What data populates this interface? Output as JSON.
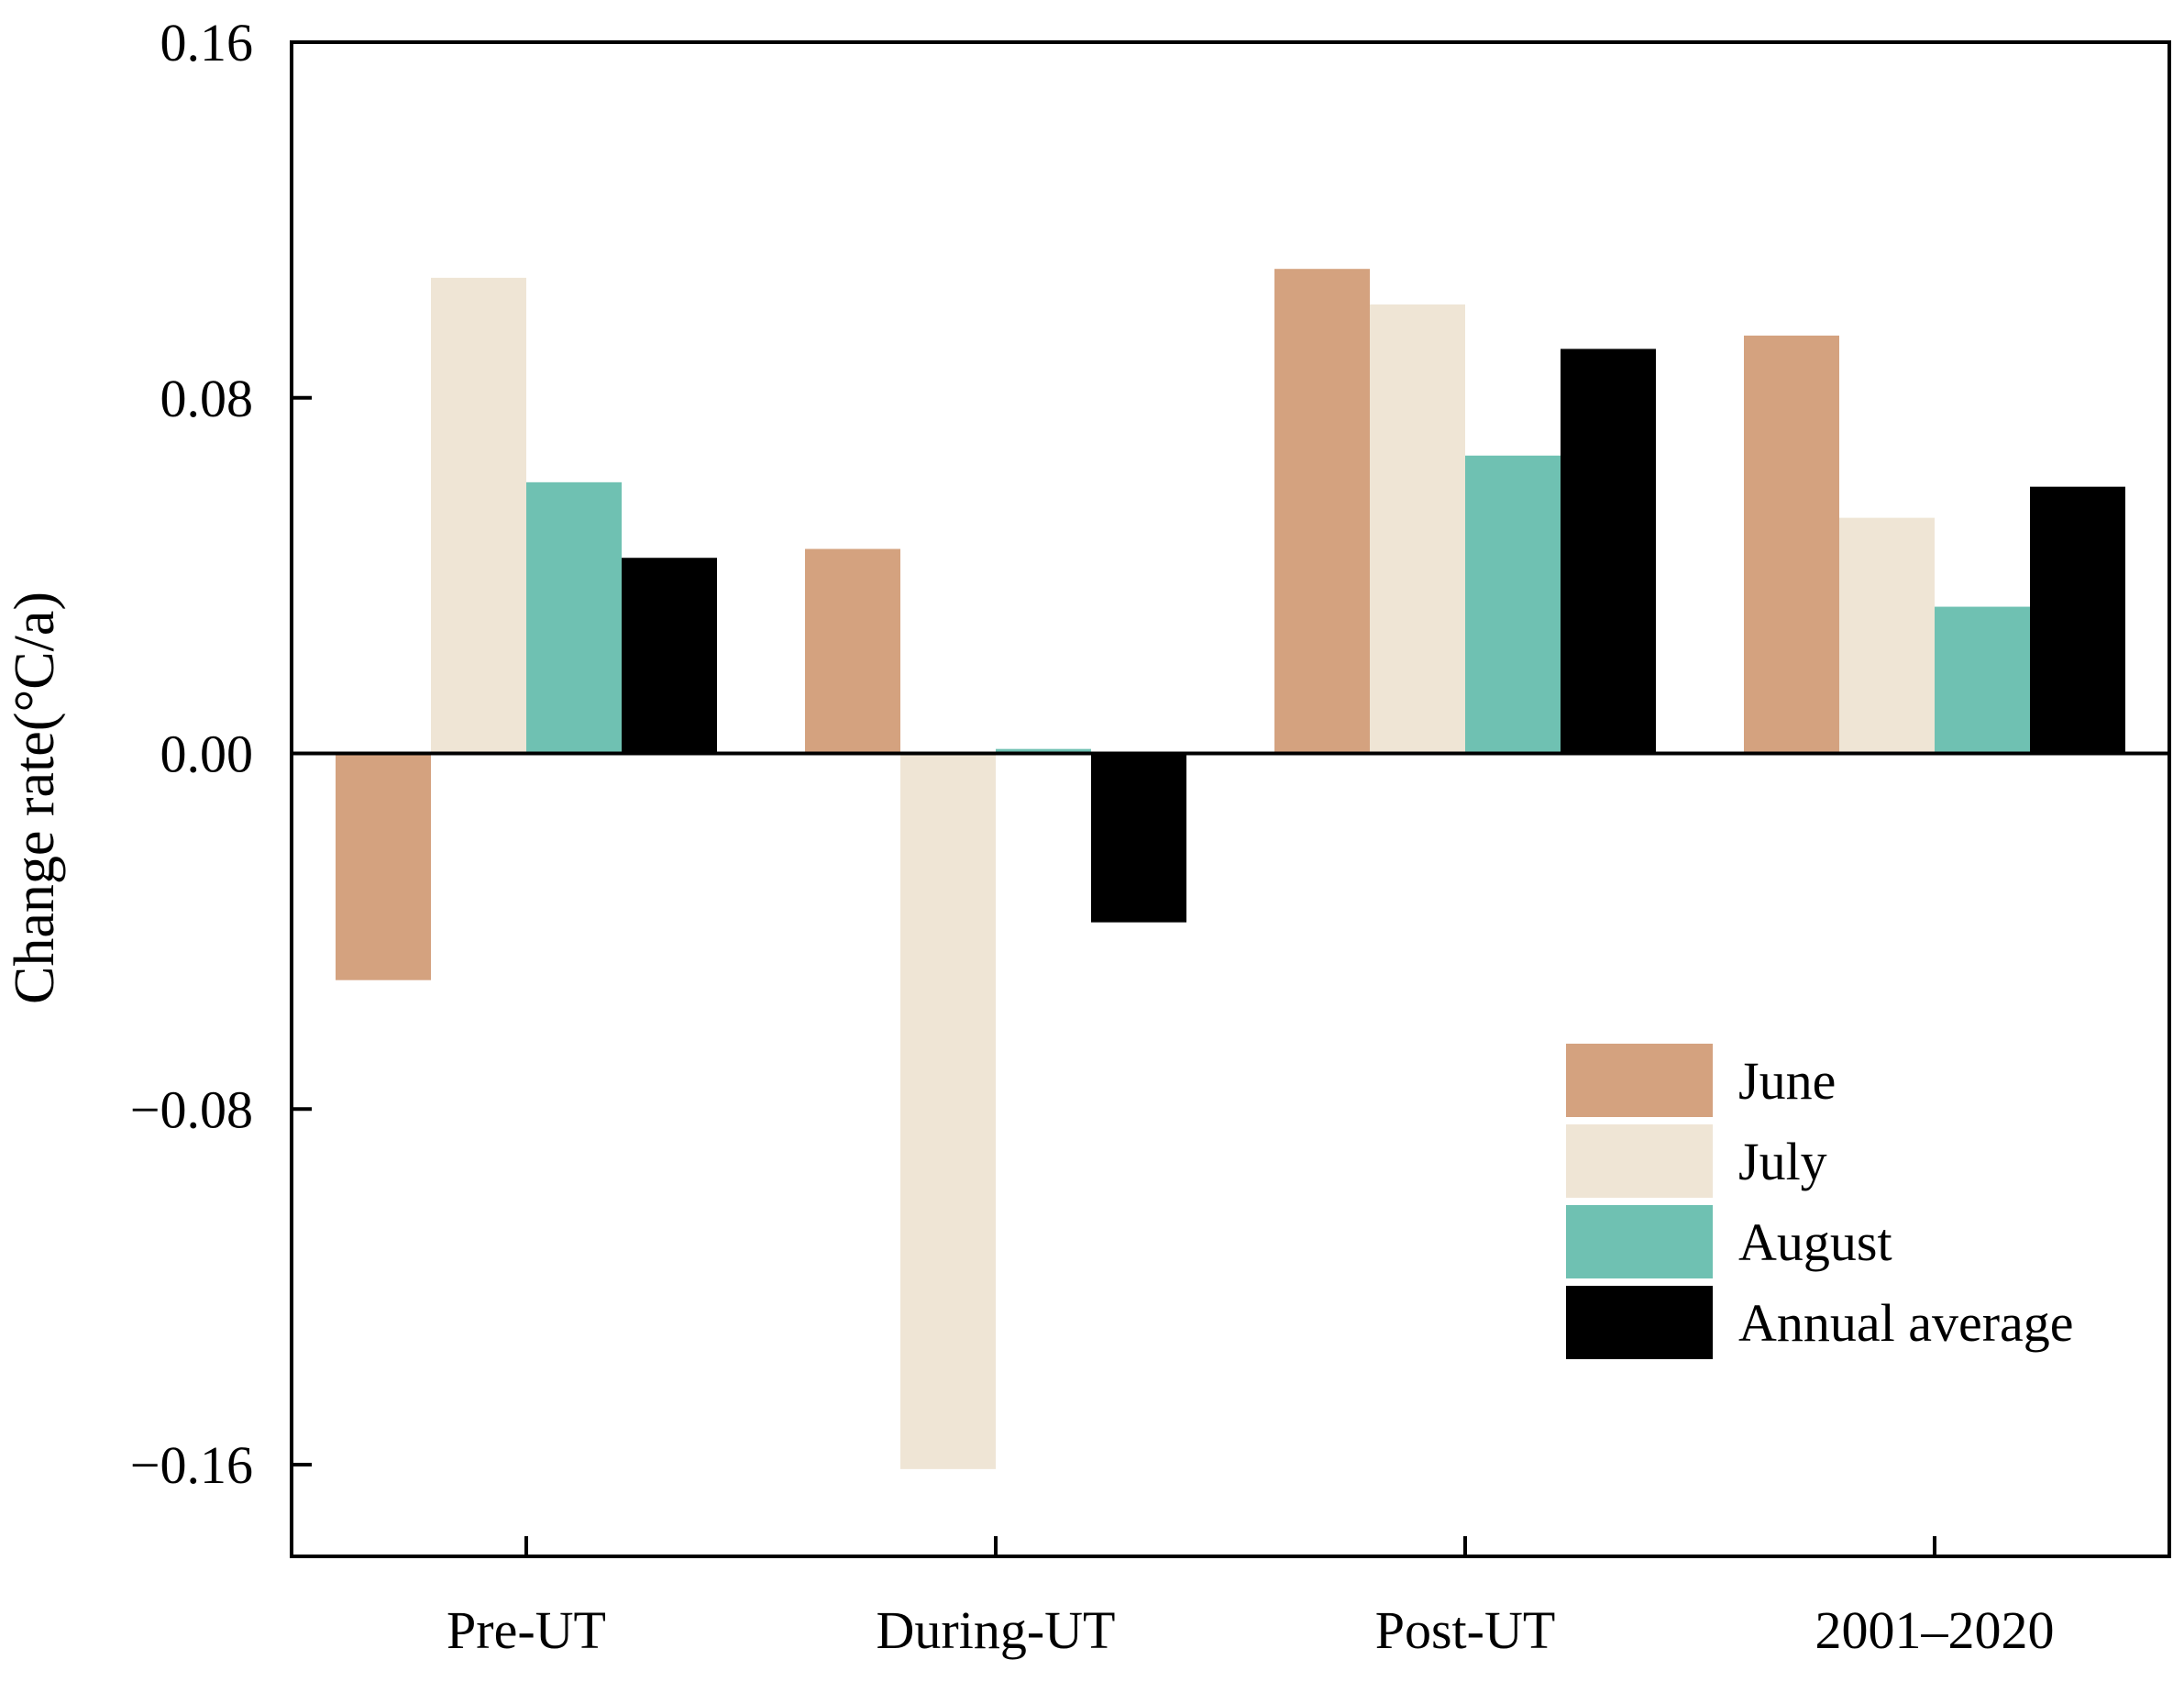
{
  "chart_data": {
    "type": "bar",
    "title": "",
    "xlabel": "",
    "ylabel": "Change rate(°C/a)",
    "ylim": [
      -0.18,
      0.16
    ],
    "yticks": [
      0.16,
      0.08,
      0.0,
      -0.08,
      -0.16
    ],
    "ytick_labels": [
      "0.16",
      "0.08",
      "0.00",
      "−0.08",
      "−0.16"
    ],
    "grid": false,
    "legend_position": "bottom-right",
    "categories": [
      "Pre-UT",
      "During-UT",
      "Post-UT",
      "2001–2020"
    ],
    "series": [
      {
        "name": "June",
        "color": "#d4a27f",
        "values": [
          -0.051,
          0.046,
          0.109,
          0.094
        ]
      },
      {
        "name": "July",
        "color": "#efe5d5",
        "values": [
          0.107,
          -0.161,
          0.101,
          0.053
        ]
      },
      {
        "name": "August",
        "color": "#6fc1b2",
        "values": [
          0.061,
          0.001,
          0.067,
          0.033
        ]
      },
      {
        "name": "Annual average",
        "color": "#000000",
        "values": [
          0.044,
          -0.038,
          0.091,
          0.06
        ]
      }
    ]
  }
}
